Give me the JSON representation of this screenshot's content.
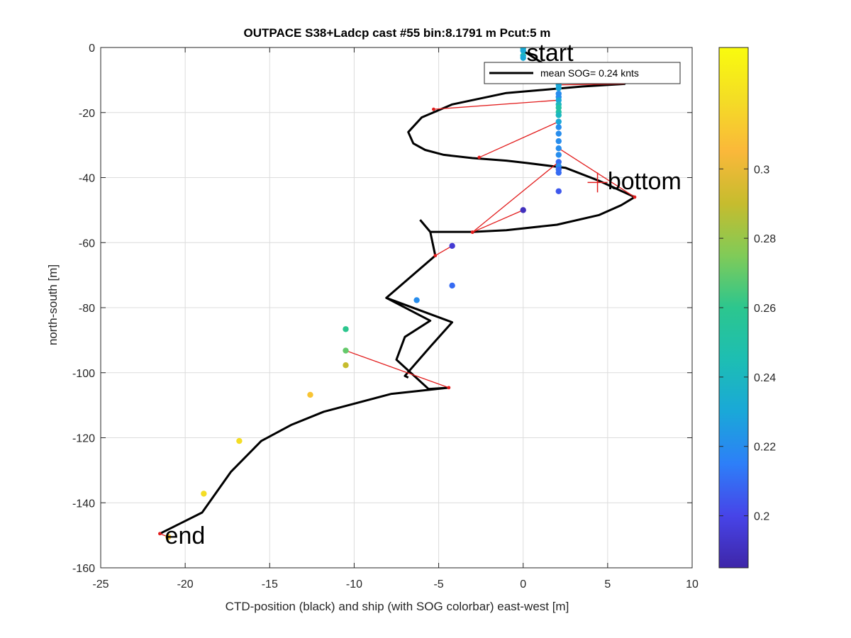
{
  "chart_data": {
    "type": "line",
    "title": "OUTPACE S38+Ladcp cast #55 bin:8.1791 m  Pcut:5 m",
    "xlabel": "CTD-position (black) and ship (with SOG colorbar) east-west [m]",
    "ylabel": "north-south [m]",
    "xlim": [
      -25,
      10
    ],
    "ylim": [
      -160,
      0
    ],
    "xticks": [
      -25,
      -20,
      -15,
      -10,
      -5,
      0,
      5,
      10
    ],
    "yticks": [
      0,
      -20,
      -40,
      -60,
      -80,
      -100,
      -120,
      -140,
      -160
    ],
    "xtick_labels": [
      "-25",
      "-20",
      "-15",
      "-10",
      "-5",
      "0",
      "5",
      "10"
    ],
    "ytick_labels": [
      "0",
      "-20",
      "-40",
      "-60",
      "-80",
      "-100",
      "-120",
      "-140",
      "-160"
    ],
    "grid": true,
    "legend": {
      "placement": "top-right",
      "entries": [
        "mean SOG=  0.24 knts"
      ]
    },
    "annotations": [
      {
        "text": "start",
        "x": 0.2,
        "y": -1.5
      },
      {
        "text": "bottom",
        "x": 5.0,
        "y": -41
      },
      {
        "text": "end",
        "x": -21.2,
        "y": -150
      }
    ],
    "ctd_track": {
      "color": "#000000",
      "points": [
        [
          0,
          -1
        ],
        [
          1.2,
          -5
        ],
        [
          2.1,
          -10
        ],
        [
          6.0,
          -11.2
        ],
        [
          3.5,
          -12
        ],
        [
          -1.0,
          -14
        ],
        [
          -4.2,
          -17.5
        ],
        [
          -6.0,
          -21.5
        ],
        [
          -6.8,
          -26
        ],
        [
          -6.5,
          -29.5
        ],
        [
          -5.8,
          -31.5
        ],
        [
          -4.7,
          -33
        ],
        [
          -3,
          -34
        ],
        [
          -1.0,
          -34.8
        ],
        [
          0.2,
          -35.5
        ],
        [
          2.5,
          -37
        ],
        [
          4.5,
          -41
        ],
        [
          6.6,
          -46
        ],
        [
          5.8,
          -48.5
        ],
        [
          4.5,
          -51.5
        ],
        [
          2.0,
          -54.5
        ],
        [
          -1.0,
          -56.2
        ],
        [
          -3.0,
          -56.7
        ],
        [
          -5.5,
          -56.7
        ]
      ],
      "branch": [
        [
          -6.1,
          -53
        ],
        [
          -5.5,
          -56.7
        ],
        [
          -5.2,
          -64
        ],
        [
          -8.1,
          -77
        ],
        [
          -5.5,
          -84
        ],
        [
          -7.0,
          -89
        ],
        [
          -7.5,
          -96
        ],
        [
          -5.6,
          -105
        ],
        [
          -4.4,
          -104.6
        ],
        [
          -7.8,
          -106.5
        ],
        [
          -11.8,
          -112
        ],
        [
          -13.7,
          -116
        ],
        [
          -15.5,
          -121
        ],
        [
          -17.3,
          -130.5
        ],
        [
          -19.0,
          -143
        ],
        [
          -21.5,
          -149.5
        ]
      ]
    },
    "ctd_extra": [
      [
        -8.1,
        -77
      ],
      [
        -4.2,
        -84.5
      ],
      [
        -5.5,
        -92
      ],
      [
        -7.0,
        -101
      ],
      [
        -6.8,
        -101.5
      ]
    ],
    "ship_track": {
      "name": "",
      "points": [
        {
          "x": 0.0,
          "y": -0.3,
          "sog": 0.24
        },
        {
          "x": 0.0,
          "y": -1.0,
          "sog": 0.23
        },
        {
          "x": 0.0,
          "y": -2.5,
          "sog": 0.24
        },
        {
          "x": 0.0,
          "y": -3.2,
          "sog": 0.23
        },
        {
          "x": 2.1,
          "y": -11.5,
          "sog": 0.23
        },
        {
          "x": 2.1,
          "y": -12.5,
          "sog": 0.23
        },
        {
          "x": 2.1,
          "y": -14.2,
          "sog": 0.22
        },
        {
          "x": 2.1,
          "y": -15.2,
          "sog": 0.22
        },
        {
          "x": 2.1,
          "y": -16.2,
          "sog": 0.23
        },
        {
          "x": 2.1,
          "y": -17.5,
          "sog": 0.24
        },
        {
          "x": 2.1,
          "y": -18.5,
          "sog": 0.25
        },
        {
          "x": 2.1,
          "y": -19.8,
          "sog": 0.25
        },
        {
          "x": 2.1,
          "y": -20.8,
          "sog": 0.24
        },
        {
          "x": 2.1,
          "y": -22.8,
          "sog": 0.23
        },
        {
          "x": 2.1,
          "y": -24.5,
          "sog": 0.22
        },
        {
          "x": 2.1,
          "y": -26.5,
          "sog": 0.22
        },
        {
          "x": 2.1,
          "y": -28.8,
          "sog": 0.22
        },
        {
          "x": 2.1,
          "y": -31.0,
          "sog": 0.22
        },
        {
          "x": 2.1,
          "y": -33.0,
          "sog": 0.22
        },
        {
          "x": 2.1,
          "y": -35.2,
          "sog": 0.21
        },
        {
          "x": 2.1,
          "y": -36.5,
          "sog": 0.22
        },
        {
          "x": 2.1,
          "y": -37.5,
          "sog": 0.21
        },
        {
          "x": 2.1,
          "y": -38.5,
          "sog": 0.21
        },
        {
          "x": 2.1,
          "y": -44.2,
          "sog": 0.205
        },
        {
          "x": 0.0,
          "y": -50.0,
          "sog": 0.19
        },
        {
          "x": -4.2,
          "y": -61.0,
          "sog": 0.195
        },
        {
          "x": -4.2,
          "y": -73.2,
          "sog": 0.21
        },
        {
          "x": -6.3,
          "y": -77.7,
          "sog": 0.22
        },
        {
          "x": -10.5,
          "y": -86.6,
          "sog": 0.26
        },
        {
          "x": -10.5,
          "y": -93.2,
          "sog": 0.27
        },
        {
          "x": -10.5,
          "y": -97.7,
          "sog": 0.29
        },
        {
          "x": -12.6,
          "y": -106.8,
          "sog": 0.31
        },
        {
          "x": -16.8,
          "y": -121.0,
          "sog": 0.32
        },
        {
          "x": -18.9,
          "y": -137.2,
          "sog": 0.32
        },
        {
          "x": -21.0,
          "y": -150.5,
          "sog": 0.31
        }
      ]
    },
    "ship_ctd_links": [
      [
        [
          -5.3,
          -19.0
        ],
        [
          2.1,
          -16.2
        ]
      ],
      [
        [
          -2.6,
          -33.8
        ],
        [
          2.1,
          -22.8
        ]
      ],
      [
        [
          6.6,
          -46.0
        ],
        [
          2.1,
          -31.0
        ]
      ],
      [
        [
          -3.0,
          -56.8
        ],
        [
          2.1,
          -35.2
        ]
      ],
      [
        [
          -3.0,
          -56.8
        ],
        [
          0.0,
          -50.0
        ]
      ],
      [
        [
          -5.2,
          -64.0
        ],
        [
          -4.2,
          -61.0
        ]
      ],
      [
        [
          -4.4,
          -104.6
        ],
        [
          -10.5,
          -93.2
        ]
      ],
      [
        [
          -21.5,
          -149.5
        ],
        [
          -21.0,
          -150.5
        ]
      ],
      [
        [
          2.1,
          -11.5
        ],
        [
          6.0,
          -11.2
        ]
      ]
    ],
    "link_color": "#e21d1d",
    "bottom_marker": {
      "x": 4.4,
      "y": -41.5
    },
    "colorbar": {
      "min": 0.185,
      "max": 0.335,
      "ticks": [
        0.2,
        0.22,
        0.24,
        0.26,
        0.28,
        0.3
      ],
      "tick_labels": [
        "0.2",
        "0.22",
        "0.24",
        "0.26",
        "0.28",
        "0.3"
      ],
      "colormap": [
        "#3e26a8",
        "#4744e8",
        "#2d7ff8",
        "#1aa8d8",
        "#1dbeb3",
        "#2cc68e",
        "#80cb58",
        "#c6bc2e",
        "#fab83a",
        "#f4dd25",
        "#f9fb0e"
      ]
    }
  }
}
